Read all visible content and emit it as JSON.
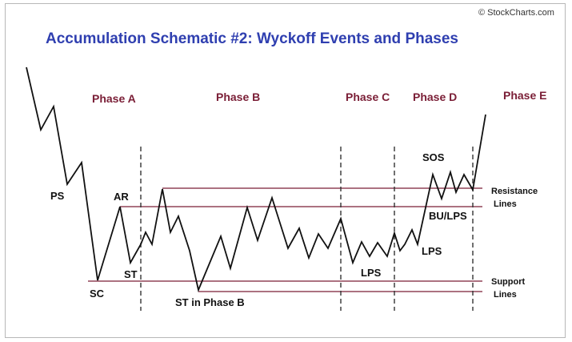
{
  "watermark": "© StockCharts.com",
  "title": "Accumulation Schematic #2: Wyckoff Events and Phases",
  "phases": [
    "Phase A",
    "Phase B",
    "Phase C",
    "Phase D",
    "Phase E"
  ],
  "events": {
    "ps": "PS",
    "sc": "SC",
    "ar": "AR",
    "st": "ST",
    "st_phase_b": "ST in Phase B",
    "lps_c": "LPS",
    "lps_d": "LPS",
    "sos": "SOS",
    "bu_lps": "BU/LPS"
  },
  "side_labels": {
    "resistance_1": "Resistance",
    "resistance_2": "Lines",
    "support_1": "Support",
    "support_2": "Lines"
  },
  "colors": {
    "title": "#2f3fb0",
    "phase": "#7a1e36",
    "level_lines": "#7a1e36",
    "price_line": "#111111"
  }
}
